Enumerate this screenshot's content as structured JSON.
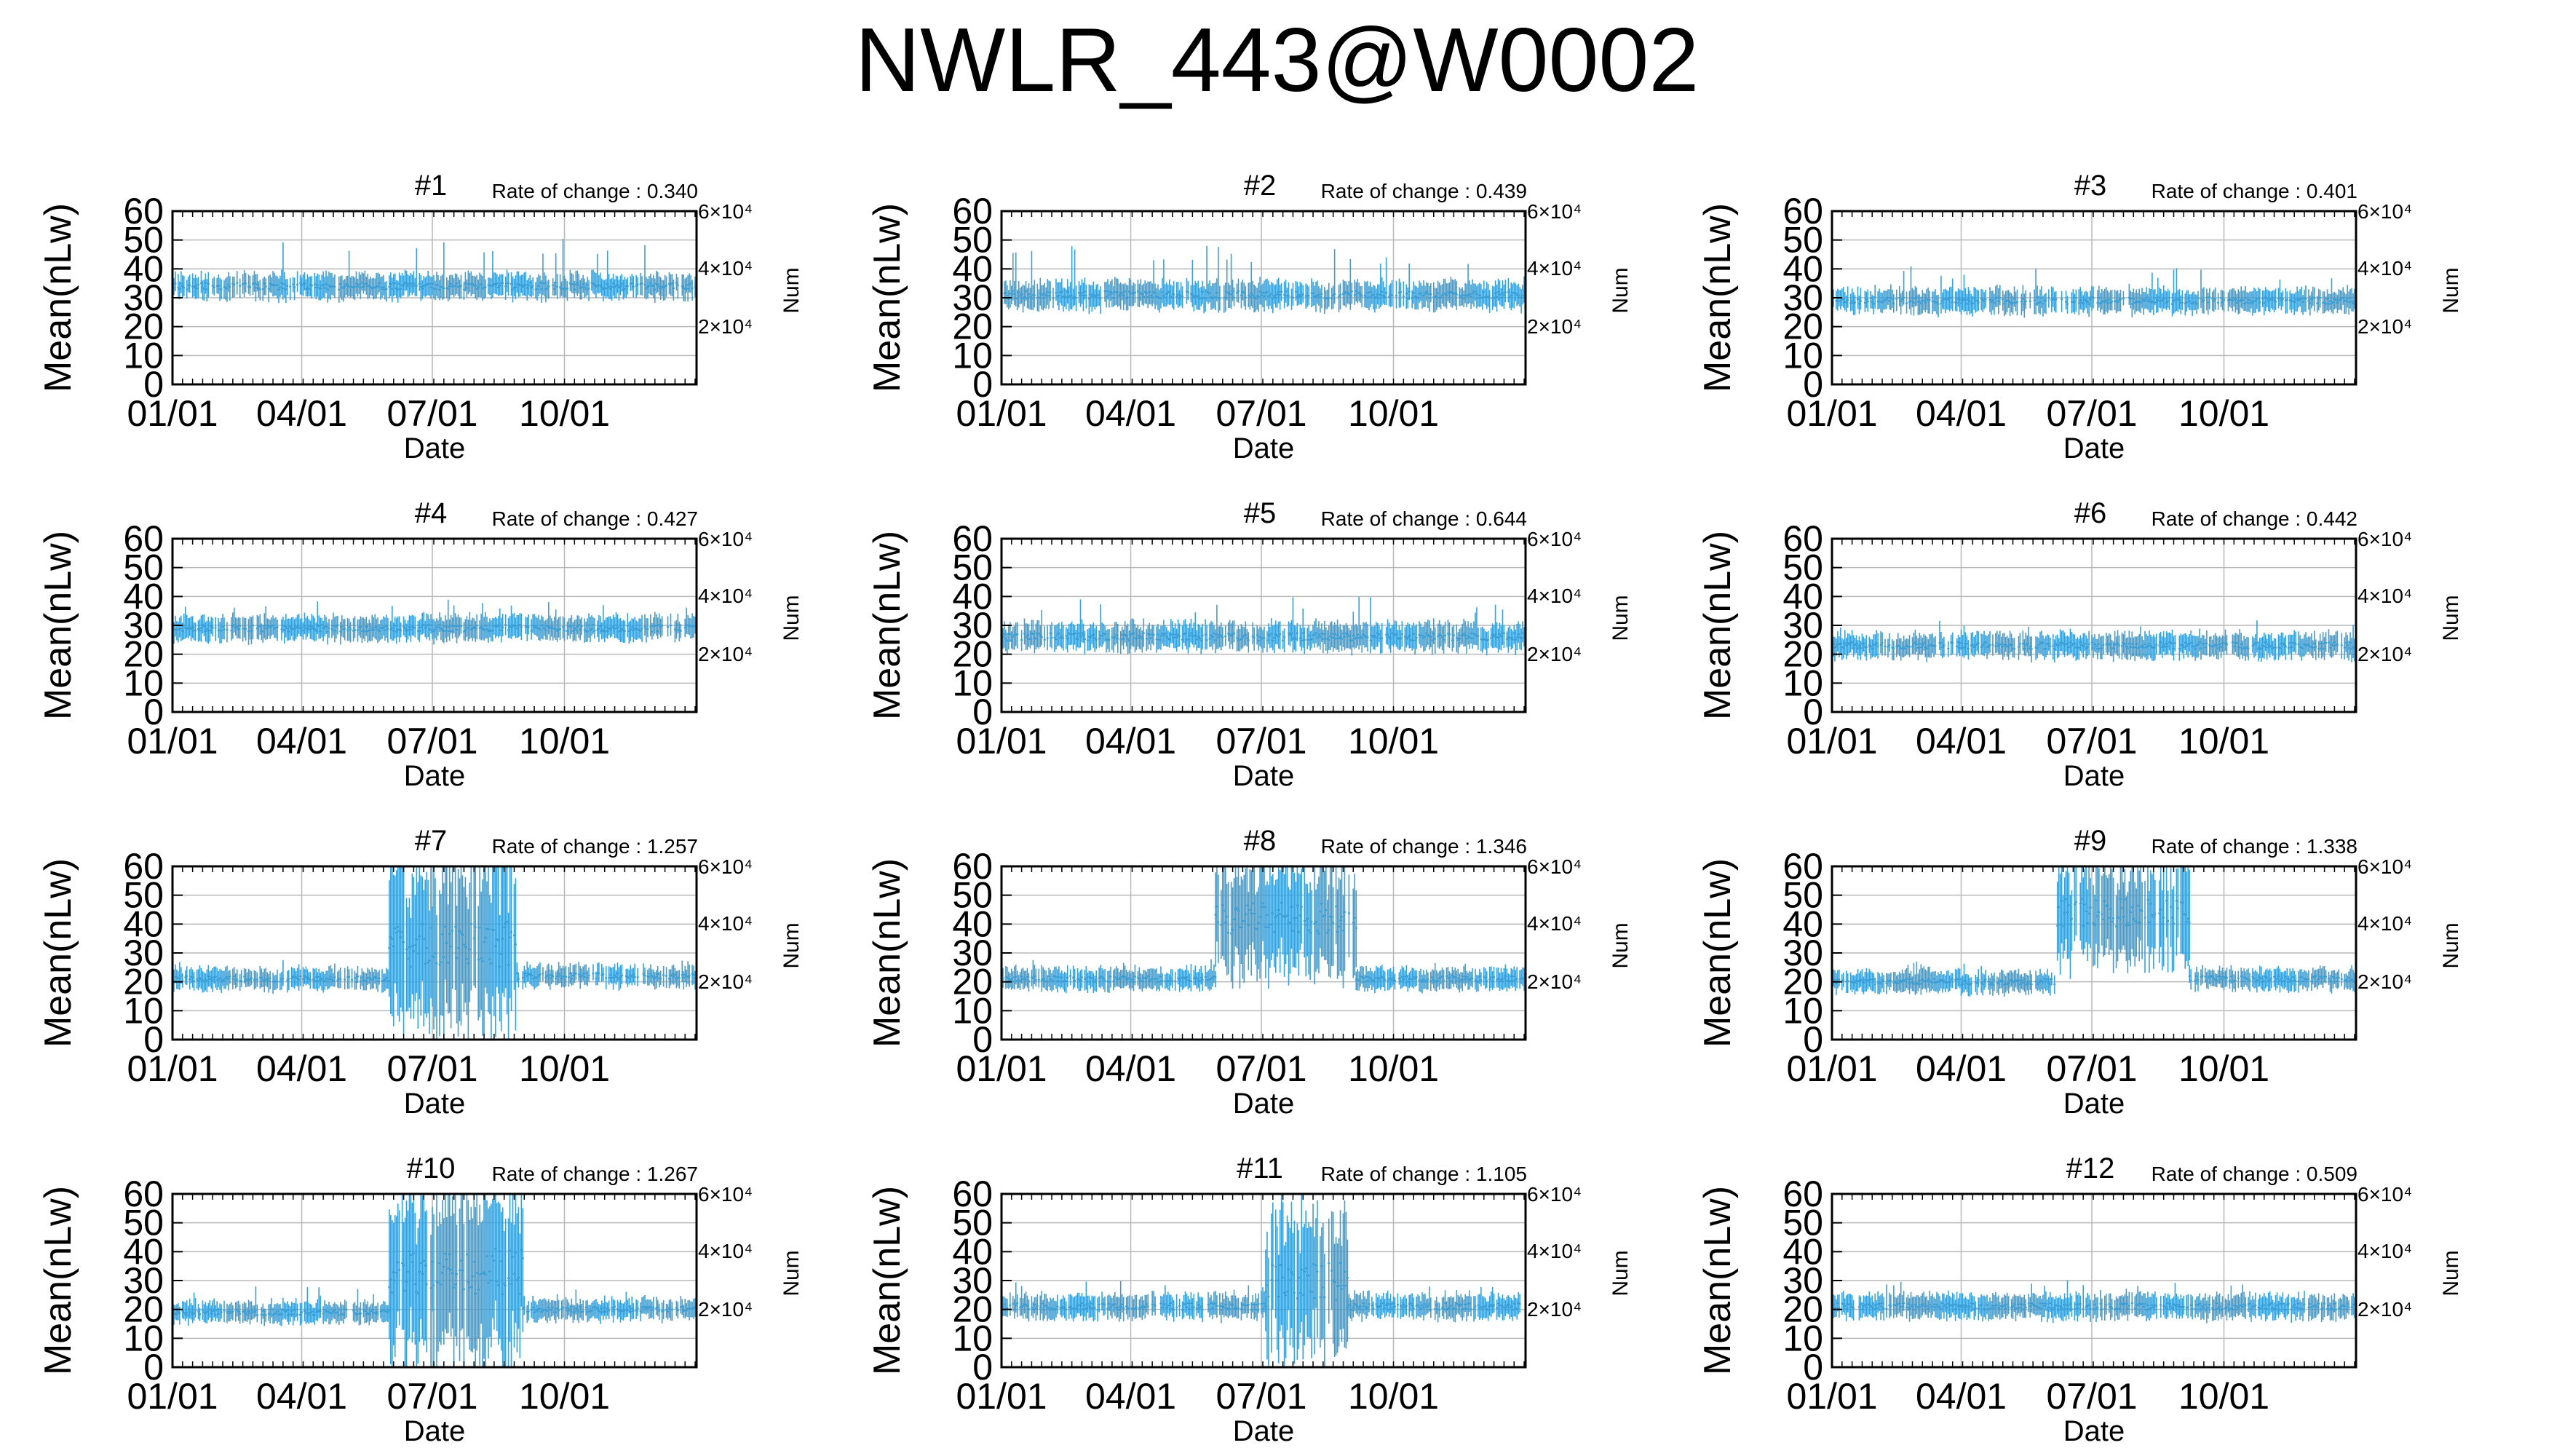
{
  "title": "NWLR_443@W0002",
  "colors": {
    "data": "#3b9fd6",
    "grid": "#b8b8b8",
    "axis": "#000000"
  },
  "chart_data": [
    {
      "type": "errorbar",
      "title": "#1",
      "rate_label": "Rate of change : 0.340",
      "xlabel": "Date",
      "ylabel": "Mean(nLw)",
      "y2label": "Num",
      "ylim": [
        0,
        60
      ],
      "xticks": [
        "01/01",
        "04/01",
        "07/01",
        "10/01"
      ],
      "yticks": [
        0,
        10,
        20,
        30,
        40,
        50,
        60
      ],
      "y2ticks": [
        "2×10⁴",
        "4×10⁴",
        "6×10⁴"
      ],
      "x_range_days": [
        1,
        366
      ],
      "grid": true,
      "series": [
        {
          "segments": [
            {
              "from_day": 1,
              "to_day": 366,
              "mean": 34,
              "err": 4,
              "spike_max": 51
            }
          ]
        }
      ]
    },
    {
      "type": "errorbar",
      "title": "#2",
      "rate_label": "Rate of change : 0.439",
      "xlabel": "Date",
      "ylabel": "Mean(nLw)",
      "y2label": "Num",
      "ylim": [
        0,
        60
      ],
      "xticks": [
        "01/01",
        "04/01",
        "07/01",
        "10/01"
      ],
      "yticks": [
        0,
        10,
        20,
        30,
        40,
        50,
        60
      ],
      "y2ticks": [
        "2×10⁴",
        "4×10⁴",
        "6×10⁴"
      ],
      "x_range_days": [
        1,
        366
      ],
      "grid": true,
      "series": [
        {
          "segments": [
            {
              "from_day": 1,
              "to_day": 366,
              "mean": 31,
              "err": 4.5,
              "spike_max": 48
            }
          ]
        }
      ]
    },
    {
      "type": "errorbar",
      "title": "#3",
      "rate_label": "Rate of change : 0.401",
      "xlabel": "Date",
      "ylabel": "Mean(nLw)",
      "y2label": "Num",
      "ylim": [
        0,
        60
      ],
      "xticks": [
        "01/01",
        "04/01",
        "07/01",
        "10/01"
      ],
      "yticks": [
        0,
        10,
        20,
        30,
        40,
        50,
        60
      ],
      "y2ticks": [
        "2×10⁴",
        "4×10⁴",
        "6×10⁴"
      ],
      "x_range_days": [
        1,
        366
      ],
      "grid": true,
      "series": [
        {
          "segments": [
            {
              "from_day": 1,
              "to_day": 366,
              "mean": 29,
              "err": 4,
              "spike_max": 41
            }
          ]
        }
      ]
    },
    {
      "type": "errorbar",
      "title": "#4",
      "rate_label": "Rate of change : 0.427",
      "xlabel": "Date",
      "ylabel": "Mean(nLw)",
      "y2label": "Num",
      "ylim": [
        0,
        60
      ],
      "xticks": [
        "01/01",
        "04/01",
        "07/01",
        "10/01"
      ],
      "yticks": [
        0,
        10,
        20,
        30,
        40,
        50,
        60
      ],
      "y2ticks": [
        "2×10⁴",
        "4×10⁴",
        "6×10⁴"
      ],
      "x_range_days": [
        1,
        366
      ],
      "grid": true,
      "series": [
        {
          "segments": [
            {
              "from_day": 1,
              "to_day": 366,
              "mean": 29,
              "err": 4,
              "spike_max": 39
            }
          ]
        }
      ]
    },
    {
      "type": "errorbar",
      "title": "#5",
      "rate_label": "Rate of change : 0.644",
      "xlabel": "Date",
      "ylabel": "Mean(nLw)",
      "y2label": "Num",
      "ylim": [
        0,
        60
      ],
      "xticks": [
        "01/01",
        "04/01",
        "07/01",
        "10/01"
      ],
      "yticks": [
        0,
        10,
        20,
        30,
        40,
        50,
        60
      ],
      "y2ticks": [
        "2×10⁴",
        "4×10⁴",
        "6×10⁴"
      ],
      "x_range_days": [
        1,
        366
      ],
      "grid": true,
      "series": [
        {
          "segments": [
            {
              "from_day": 1,
              "to_day": 366,
              "mean": 26,
              "err": 4.5,
              "spike_max": 40
            }
          ]
        }
      ]
    },
    {
      "type": "errorbar",
      "title": "#6",
      "rate_label": "Rate of change : 0.442",
      "xlabel": "Date",
      "ylabel": "Mean(nLw)",
      "y2label": "Num",
      "ylim": [
        0,
        60
      ],
      "xticks": [
        "01/01",
        "04/01",
        "07/01",
        "10/01"
      ],
      "yticks": [
        0,
        10,
        20,
        30,
        40,
        50,
        60
      ],
      "y2ticks": [
        "2×10⁴",
        "4×10⁴",
        "6×10⁴"
      ],
      "x_range_days": [
        1,
        366
      ],
      "grid": true,
      "series": [
        {
          "segments": [
            {
              "from_day": 1,
              "to_day": 366,
              "mean": 23,
              "err": 4,
              "spike_max": 32
            }
          ]
        }
      ]
    },
    {
      "type": "errorbar",
      "title": "#7",
      "rate_label": "Rate of change : 1.257",
      "xlabel": "Date",
      "ylabel": "Mean(nLw)",
      "y2label": "Num",
      "ylim": [
        0,
        60
      ],
      "xticks": [
        "01/01",
        "04/01",
        "07/01",
        "10/01"
      ],
      "yticks": [
        0,
        10,
        20,
        30,
        40,
        50,
        60
      ],
      "y2ticks": [
        "2×10⁴",
        "4×10⁴",
        "6×10⁴"
      ],
      "x_range_days": [
        1,
        366
      ],
      "grid": true,
      "series": [
        {
          "segments": [
            {
              "from_day": 1,
              "to_day": 152,
              "mean": 21,
              "err": 3.5,
              "spike_max": 28
            },
            {
              "from_day": 152,
              "to_day": 240,
              "mean": 33,
              "err": 27,
              "spike_max": 60
            },
            {
              "from_day": 240,
              "to_day": 366,
              "mean": 22,
              "err": 3.5,
              "spike_max": 28
            }
          ]
        }
      ]
    },
    {
      "type": "errorbar",
      "title": "#8",
      "rate_label": "Rate of change : 1.346",
      "xlabel": "Date",
      "ylabel": "Mean(nLw)",
      "y2label": "Num",
      "ylim": [
        0,
        60
      ],
      "xticks": [
        "01/01",
        "04/01",
        "07/01",
        "10/01"
      ],
      "yticks": [
        0,
        10,
        20,
        30,
        40,
        50,
        60
      ],
      "y2ticks": [
        "2×10⁴",
        "4×10⁴",
        "6×10⁴"
      ],
      "x_range_days": [
        1,
        366
      ],
      "grid": true,
      "series": [
        {
          "segments": [
            {
              "from_day": 1,
              "to_day": 150,
              "mean": 21,
              "err": 3.5,
              "spike_max": 28
            },
            {
              "from_day": 150,
              "to_day": 248,
              "mean": 42,
              "err": 18,
              "spike_max": 60
            },
            {
              "from_day": 248,
              "to_day": 366,
              "mean": 21,
              "err": 3.5,
              "spike_max": 28
            }
          ]
        }
      ]
    },
    {
      "type": "errorbar",
      "title": "#9",
      "rate_label": "Rate of change : 1.338",
      "xlabel": "Date",
      "ylabel": "Mean(nLw)",
      "y2label": "Num",
      "ylim": [
        0,
        60
      ],
      "xticks": [
        "01/01",
        "04/01",
        "07/01",
        "10/01"
      ],
      "yticks": [
        0,
        10,
        20,
        30,
        40,
        50,
        60
      ],
      "y2ticks": [
        "2×10⁴",
        "4×10⁴",
        "6×10⁴"
      ],
      "x_range_days": [
        1,
        366
      ],
      "grid": true,
      "series": [
        {
          "segments": [
            {
              "from_day": 1,
              "to_day": 158,
              "mean": 20,
              "err": 3.5,
              "spike_max": 27
            },
            {
              "from_day": 158,
              "to_day": 250,
              "mean": 44,
              "err": 16,
              "spike_max": 60
            },
            {
              "from_day": 250,
              "to_day": 366,
              "mean": 21,
              "err": 3.5,
              "spike_max": 28
            }
          ]
        }
      ]
    },
    {
      "type": "errorbar",
      "title": "#10",
      "rate_label": "Rate of change : 1.267",
      "xlabel": "Date",
      "ylabel": "Mean(nLw)",
      "y2label": "Num",
      "ylim": [
        0,
        60
      ],
      "xticks": [
        "01/01",
        "04/01",
        "07/01",
        "10/01"
      ],
      "yticks": [
        0,
        10,
        20,
        30,
        40,
        50,
        60
      ],
      "y2ticks": [
        "2×10⁴",
        "4×10⁴",
        "6×10⁴"
      ],
      "x_range_days": [
        1,
        366
      ],
      "grid": true,
      "series": [
        {
          "segments": [
            {
              "from_day": 1,
              "to_day": 152,
              "mean": 19,
              "err": 3.5,
              "spike_max": 28
            },
            {
              "from_day": 152,
              "to_day": 245,
              "mean": 33,
              "err": 27,
              "spike_max": 60
            },
            {
              "from_day": 245,
              "to_day": 366,
              "mean": 20,
              "err": 3.5,
              "spike_max": 27
            }
          ]
        }
      ]
    },
    {
      "type": "errorbar",
      "title": "#11",
      "rate_label": "Rate of change : 1.105",
      "xlabel": "Date",
      "ylabel": "Mean(nLw)",
      "y2label": "Num",
      "ylim": [
        0,
        60
      ],
      "xticks": [
        "01/01",
        "04/01",
        "07/01",
        "10/01"
      ],
      "yticks": [
        0,
        10,
        20,
        30,
        40,
        50,
        60
      ],
      "y2ticks": [
        "2×10⁴",
        "4×10⁴",
        "6×10⁴"
      ],
      "x_range_days": [
        1,
        366
      ],
      "grid": true,
      "series": [
        {
          "segments": [
            {
              "from_day": 1,
              "to_day": 185,
              "mean": 21,
              "err": 4,
              "spike_max": 30
            },
            {
              "from_day": 185,
              "to_day": 242,
              "mean": 30,
              "err": 22,
              "spike_max": 60
            },
            {
              "from_day": 242,
              "to_day": 366,
              "mean": 21,
              "err": 4,
              "spike_max": 28
            }
          ]
        }
      ]
    },
    {
      "type": "errorbar",
      "title": "#12",
      "rate_label": "Rate of change : 0.509",
      "xlabel": "Date",
      "ylabel": "Mean(nLw)",
      "y2label": "Num",
      "ylim": [
        0,
        60
      ],
      "xticks": [
        "01/01",
        "04/01",
        "07/01",
        "10/01"
      ],
      "yticks": [
        0,
        10,
        20,
        30,
        40,
        50,
        60
      ],
      "y2ticks": [
        "2×10⁴",
        "4×10⁴",
        "6×10⁴"
      ],
      "x_range_days": [
        1,
        366
      ],
      "grid": true,
      "series": [
        {
          "segments": [
            {
              "from_day": 1,
              "to_day": 366,
              "mean": 21,
              "err": 4,
              "spike_max": 30
            }
          ]
        }
      ]
    }
  ]
}
